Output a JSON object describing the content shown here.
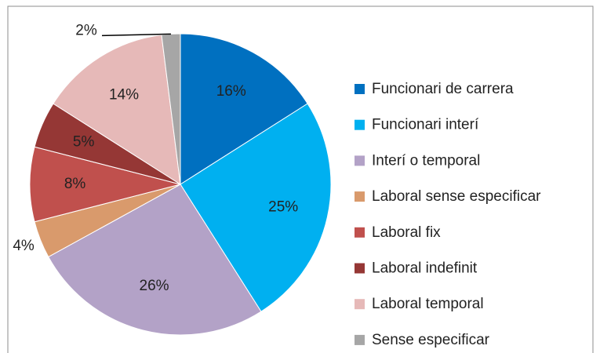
{
  "chart_data": {
    "type": "pie",
    "categories": [
      "Funcionari de carrera",
      "Funcionari interí",
      "Interí o temporal",
      "Laboral sense especificar",
      "Laboral fix",
      "Laboral indefinit",
      "Laboral temporal",
      "Sense especificar"
    ],
    "values": [
      16,
      25,
      26,
      4,
      8,
      5,
      14,
      2
    ],
    "value_labels": [
      "16%",
      "25%",
      "26%",
      "4%",
      "8%",
      "5%",
      "14%",
      "2%"
    ],
    "colors": [
      "#0070c0",
      "#00b0f0",
      "#b3a2c7",
      "#d99a6c",
      "#c0504d",
      "#953735",
      "#e6b9b8",
      "#a6a6a6"
    ],
    "legend": "right"
  }
}
